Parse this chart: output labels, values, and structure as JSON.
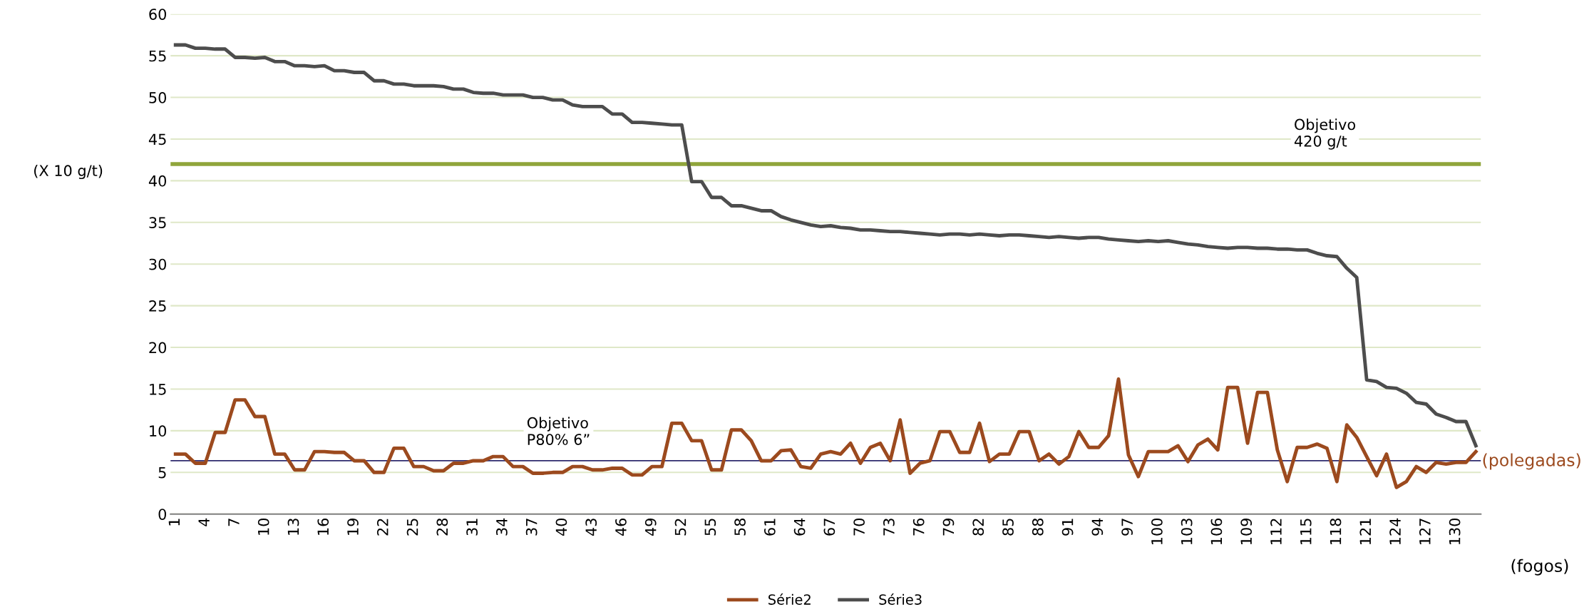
{
  "chart_data": {
    "type": "line",
    "categories": [
      "1",
      null,
      null,
      "4",
      null,
      null,
      "7",
      null,
      null,
      "10",
      null,
      null,
      "13",
      null,
      null,
      "16",
      null,
      null,
      "19",
      null,
      null,
      "22",
      null,
      null,
      "25",
      null,
      null,
      "28",
      null,
      null,
      "31",
      null,
      null,
      "34",
      null,
      null,
      "37",
      null,
      null,
      "40",
      null,
      null,
      "43",
      null,
      null,
      "46",
      null,
      null,
      "49",
      null,
      null,
      "52",
      null,
      null,
      "55",
      null,
      null,
      "58",
      null,
      null,
      "61",
      null,
      null,
      "64",
      null,
      null,
      "67",
      null,
      null,
      "70",
      null,
      null,
      "73",
      null,
      null,
      "76",
      null,
      null,
      "79",
      null,
      null,
      "82",
      null,
      null,
      "85",
      null,
      null,
      "88",
      null,
      null,
      "91",
      null,
      null,
      "94",
      null,
      null,
      "97",
      null,
      null,
      "100",
      null,
      null,
      "103",
      null,
      null,
      "106",
      null,
      null,
      "109",
      null,
      null,
      "112",
      null,
      null,
      "115",
      null,
      null,
      "118",
      null,
      null,
      "121",
      null,
      null,
      "124",
      null,
      null,
      "127",
      null,
      null,
      "130",
      null,
      null
    ],
    "series": [
      {
        "name": "Série2",
        "color": "#9c4a1e",
        "values": [
          7.2,
          7.2,
          6.1,
          6.1,
          9.8,
          9.8,
          13.7,
          13.7,
          11.7,
          11.7,
          7.2,
          7.2,
          5.3,
          5.3,
          7.5,
          7.5,
          7.4,
          7.4,
          6.4,
          6.4,
          5.0,
          5.0,
          7.9,
          7.9,
          5.7,
          5.7,
          5.2,
          5.2,
          6.1,
          6.1,
          6.4,
          6.4,
          6.9,
          6.9,
          5.7,
          5.7,
          4.9,
          4.9,
          5.0,
          5.0,
          5.7,
          5.7,
          5.3,
          5.3,
          5.5,
          5.5,
          4.7,
          4.7,
          5.7,
          5.7,
          10.9,
          10.9,
          8.8,
          8.8,
          5.3,
          5.3,
          10.1,
          10.1,
          8.8,
          6.4,
          6.4,
          7.6,
          7.7,
          5.7,
          5.5,
          7.2,
          7.5,
          7.2,
          8.5,
          6.1,
          8.0,
          8.5,
          6.4,
          11.3,
          4.9,
          6.1,
          6.4,
          9.9,
          9.9,
          7.4,
          7.4,
          10.9,
          6.3,
          7.2,
          7.2,
          9.9,
          9.9,
          6.4,
          7.2,
          6.0,
          6.9,
          9.9,
          8.0,
          8.0,
          9.4,
          16.2,
          7.1,
          4.5,
          7.5,
          7.5,
          7.5,
          8.2,
          6.3,
          8.3,
          9.0,
          7.7,
          15.2,
          15.2,
          8.5,
          14.6,
          14.6,
          7.7,
          3.9,
          8.0,
          8.0,
          8.4,
          7.9,
          3.9,
          10.7,
          9.2,
          6.9,
          4.6,
          7.2,
          3.2,
          3.9,
          5.7,
          5.0,
          6.2,
          6.0,
          6.2,
          6.2,
          7.5
        ]
      },
      {
        "name": "Série3",
        "color": "#4d4d4d",
        "values": [
          56.3,
          56.3,
          55.9,
          55.9,
          55.8,
          55.8,
          54.8,
          54.8,
          54.7,
          54.8,
          54.3,
          54.3,
          53.8,
          53.8,
          53.7,
          53.8,
          53.2,
          53.2,
          53.0,
          53.0,
          52.0,
          52.0,
          51.6,
          51.6,
          51.4,
          51.4,
          51.4,
          51.3,
          51.0,
          51.0,
          50.6,
          50.5,
          50.5,
          50.3,
          50.3,
          50.3,
          50.0,
          50.0,
          49.7,
          49.7,
          49.1,
          48.9,
          48.9,
          48.9,
          48.0,
          48.0,
          47.0,
          47.0,
          46.9,
          46.8,
          46.7,
          46.7,
          39.9,
          39.9,
          38.0,
          38.0,
          37.0,
          37.0,
          36.7,
          36.4,
          36.4,
          35.7,
          35.3,
          35.0,
          34.7,
          34.5,
          34.6,
          34.4,
          34.3,
          34.1,
          34.1,
          34.0,
          33.9,
          33.9,
          33.8,
          33.7,
          33.6,
          33.5,
          33.6,
          33.6,
          33.5,
          33.6,
          33.5,
          33.4,
          33.5,
          33.5,
          33.4,
          33.3,
          33.2,
          33.3,
          33.2,
          33.1,
          33.2,
          33.2,
          33.0,
          32.9,
          32.8,
          32.7,
          32.8,
          32.7,
          32.8,
          32.6,
          32.4,
          32.3,
          32.1,
          32.0,
          31.9,
          32.0,
          32.0,
          31.9,
          31.9,
          31.8,
          31.8,
          31.7,
          31.7,
          31.3,
          31.0,
          30.9,
          29.5,
          28.4,
          16.1,
          15.9,
          15.2,
          15.1,
          14.5,
          13.4,
          13.2,
          12.0,
          11.6,
          11.1,
          11.1,
          8.2
        ]
      }
    ],
    "ylabel": "(X 10 g/t)",
    "xlabel": "(fogos)",
    "ylim": [
      0,
      60
    ],
    "yticks": [
      0,
      5,
      10,
      15,
      20,
      25,
      30,
      35,
      40,
      45,
      50,
      55,
      60
    ],
    "ref_lines": [
      {
        "axis": "y",
        "value": 42,
        "label": "Objetivo\n420 g/t",
        "color": "#8fa53b"
      },
      {
        "axis": "y",
        "value": 6.4,
        "label": "Objetivo\nP80% 6”",
        "color": "#2e2a6e"
      }
    ],
    "annotations": [
      "(polegadas)"
    ],
    "grid": "y",
    "legend": "bottom",
    "marker": "none",
    "line_style": "solid"
  }
}
